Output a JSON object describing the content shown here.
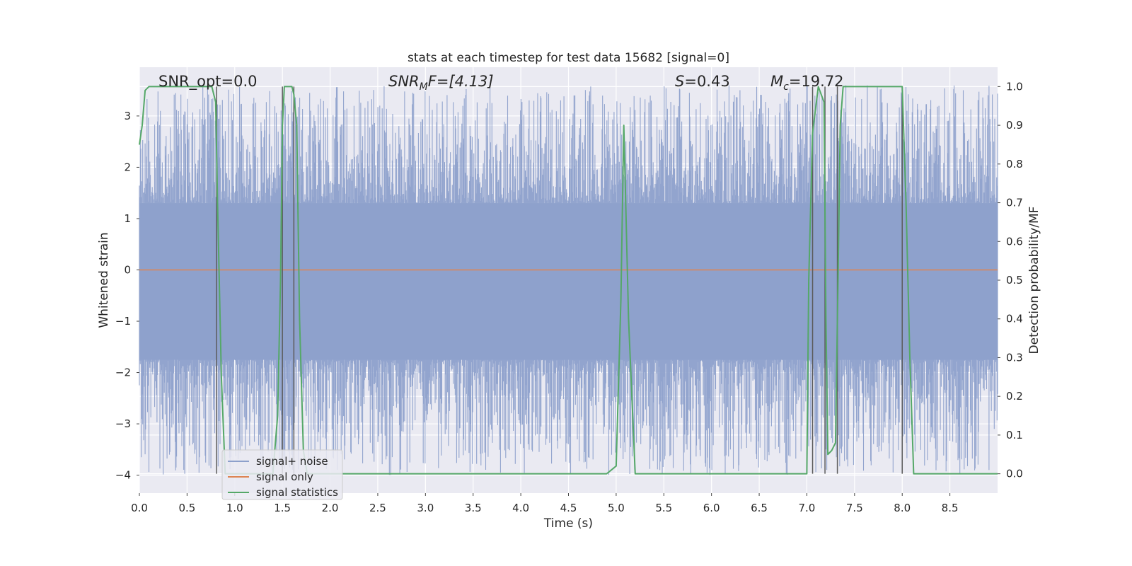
{
  "chart_data": {
    "type": "line",
    "title": "stats at each timestep for test data 15682 [signal=0]",
    "xlabel": "Time (s)",
    "ylabel": "Whitened strain",
    "y2label": "Detection probability/MF",
    "xlim": [
      0.0,
      9.0
    ],
    "ylim": [
      -4.35,
      3.95
    ],
    "y2lim": [
      -0.05,
      1.05
    ],
    "x_ticks": [
      "0.0",
      "0.5",
      "1.0",
      "1.5",
      "2.0",
      "2.5",
      "3.0",
      "3.5",
      "4.0",
      "4.5",
      "5.0",
      "5.5",
      "6.0",
      "6.5",
      "7.0",
      "7.5",
      "8.0",
      "8.5"
    ],
    "x_tick_values": [
      0.0,
      0.5,
      1.0,
      1.5,
      2.0,
      2.5,
      3.0,
      3.5,
      4.0,
      4.5,
      5.0,
      5.5,
      6.0,
      6.5,
      7.0,
      7.5,
      8.0,
      8.5
    ],
    "y_ticks": [
      "−4",
      "−3",
      "−2",
      "−1",
      "0",
      "1",
      "2",
      "3"
    ],
    "y_tick_values": [
      -4,
      -3,
      -2,
      -1,
      0,
      1,
      2,
      3
    ],
    "y2_ticks": [
      "0.0",
      "0.1",
      "0.2",
      "0.3",
      "0.4",
      "0.5",
      "0.6",
      "0.7",
      "0.8",
      "0.9",
      "1.0"
    ],
    "y2_tick_values": [
      0.0,
      0.1,
      0.2,
      0.3,
      0.4,
      0.5,
      0.6,
      0.7,
      0.8,
      0.9,
      1.0
    ],
    "grid": true,
    "legend_position": "bottom-left",
    "annotations": {
      "snr_opt": "SNR_opt=0.0",
      "snr_mf_prefix": "SNR",
      "snr_mf_sub": "M",
      "snr_mf_suffix": "F=[4.13]",
      "s_prefix": "S",
      "s_suffix": "=0.43",
      "mc_prefix": "M",
      "mc_sub": "c",
      "mc_suffix": "=19.72"
    },
    "series": [
      {
        "name": "signal+ noise",
        "color": "#8da0cb",
        "type": "noise",
        "envelope_hi": 1.3,
        "envelope_lo": -1.75,
        "peak_max": 3.6,
        "peak_min": -4.0
      },
      {
        "name": "signal only",
        "color": "#dd8452",
        "y": 0.0
      },
      {
        "name": "signal statistics",
        "color": "#55a868",
        "axis": "right",
        "x": [
          0.0,
          0.03,
          0.06,
          0.1,
          0.15,
          0.3,
          0.5,
          0.7,
          0.76,
          0.8,
          0.82,
          0.86,
          0.9,
          0.95,
          1.0,
          1.2,
          1.4,
          1.45,
          1.48,
          1.5,
          1.52,
          1.56,
          1.6,
          1.62,
          1.65,
          1.68,
          1.72,
          1.76,
          1.8,
          2.0,
          3.0,
          4.0,
          4.9,
          4.95,
          5.0,
          5.05,
          5.08,
          5.13,
          5.2,
          5.5,
          6.0,
          6.5,
          7.0,
          7.02,
          7.06,
          7.12,
          7.18,
          7.2,
          7.22,
          7.26,
          7.3,
          7.33,
          7.35,
          7.38,
          7.5,
          7.8,
          7.95,
          8.0,
          8.04,
          8.08,
          8.12,
          8.2,
          8.5,
          9.0
        ],
        "y": [
          0.85,
          0.9,
          0.99,
          1.0,
          1.0,
          1.0,
          1.0,
          1.0,
          1.0,
          0.96,
          0.7,
          0.25,
          0.0,
          0.0,
          0.0,
          0.0,
          0.0,
          0.15,
          0.5,
          0.9,
          1.0,
          1.0,
          1.0,
          0.98,
          0.9,
          0.4,
          0.06,
          0.0,
          0.0,
          0.0,
          0.0,
          0.0,
          0.0,
          0.01,
          0.02,
          0.45,
          0.9,
          0.4,
          0.0,
          0.0,
          0.0,
          0.0,
          0.0,
          0.5,
          0.88,
          1.0,
          0.96,
          0.4,
          0.05,
          0.06,
          0.08,
          0.55,
          0.9,
          1.0,
          1.0,
          1.0,
          1.0,
          1.0,
          0.7,
          0.3,
          0.0,
          0.0,
          0.0,
          0.0
        ]
      },
      {
        "name": "",
        "color": "#5c5c5c",
        "type": "vlines",
        "x": [
          0.81,
          1.5,
          1.62,
          7.06,
          7.19,
          7.32,
          8.0
        ]
      }
    ]
  }
}
